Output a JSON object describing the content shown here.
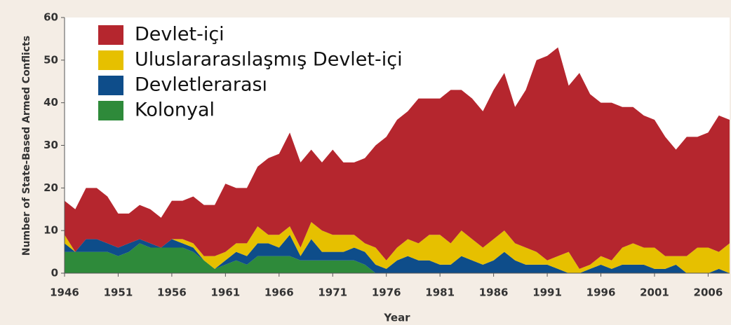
{
  "chart_data": {
    "type": "stacked_area",
    "x_label": "Year",
    "y_label": "Number of State-Based Armed Conflicts",
    "x": [
      1946,
      1947,
      1948,
      1949,
      1950,
      1951,
      1952,
      1953,
      1954,
      1955,
      1956,
      1957,
      1958,
      1959,
      1960,
      1961,
      1962,
      1963,
      1964,
      1965,
      1966,
      1967,
      1968,
      1969,
      1970,
      1971,
      1972,
      1973,
      1974,
      1975,
      1976,
      1977,
      1978,
      1979,
      1980,
      1981,
      1982,
      1983,
      1984,
      1985,
      1986,
      1987,
      1988,
      1989,
      1990,
      1991,
      1992,
      1993,
      1994,
      1995,
      1996,
      1997,
      1998,
      1999,
      2000,
      2001,
      2002,
      2003,
      2004,
      2005,
      2006,
      2007,
      2008
    ],
    "xlim": [
      1946,
      2008
    ],
    "xticks": [
      1946,
      1951,
      1956,
      1961,
      1966,
      1971,
      1976,
      1981,
      1986,
      1991,
      1996,
      2001,
      2006
    ],
    "ylim": [
      0,
      60
    ],
    "yticks": [
      0,
      10,
      20,
      30,
      40,
      50,
      60
    ],
    "legend": "upper left",
    "series": [
      {
        "name": "Kolonyal",
        "color": "#2e8a3a",
        "values": [
          5,
          5,
          5,
          5,
          5,
          4,
          5,
          7,
          6,
          6,
          6,
          6,
          5,
          3,
          1,
          2,
          3,
          2,
          4,
          4,
          4,
          4,
          3,
          3,
          3,
          3,
          3,
          3,
          2,
          0,
          0,
          0,
          0,
          0,
          0,
          0,
          0,
          0,
          0,
          0,
          0,
          0,
          0,
          0,
          0,
          0,
          0,
          0,
          0,
          0,
          0,
          0,
          0,
          0,
          0,
          0,
          0,
          0,
          0,
          0,
          0,
          0,
          0
        ]
      },
      {
        "name": "Devletlerarası",
        "color": "#0e4d8a",
        "values": [
          2,
          0,
          3,
          3,
          2,
          2,
          2,
          1,
          1,
          0,
          2,
          1,
          1,
          0,
          0,
          1,
          2,
          2,
          3,
          3,
          2,
          5,
          1,
          5,
          2,
          2,
          2,
          3,
          3,
          2,
          1,
          3,
          4,
          3,
          3,
          2,
          2,
          4,
          3,
          2,
          3,
          5,
          3,
          2,
          2,
          2,
          1,
          0,
          0,
          1,
          2,
          1,
          2,
          2,
          2,
          1,
          1,
          2,
          0,
          0,
          0,
          1,
          0
        ]
      },
      {
        "name": "Uluslararasılaşmış Devlet-içi",
        "color": "#e6c000",
        "values": [
          2,
          0,
          0,
          0,
          0,
          0,
          0,
          0,
          0,
          0,
          0,
          1,
          1,
          1,
          3,
          2,
          2,
          3,
          4,
          2,
          3,
          2,
          2,
          4,
          5,
          4,
          4,
          3,
          2,
          4,
          2,
          3,
          4,
          4,
          6,
          7,
          5,
          6,
          5,
          4,
          5,
          5,
          4,
          4,
          3,
          1,
          3,
          5,
          1,
          1,
          2,
          2,
          4,
          5,
          4,
          5,
          3,
          2,
          4,
          6,
          6,
          4,
          7
        ]
      },
      {
        "name": "Devlet-içi",
        "color": "#b5262e",
        "values": [
          8,
          10,
          12,
          12,
          11,
          8,
          7,
          8,
          8,
          7,
          9,
          9,
          11,
          12,
          12,
          16,
          13,
          13,
          14,
          18,
          19,
          22,
          20,
          17,
          16,
          20,
          17,
          17,
          20,
          24,
          29,
          30,
          30,
          34,
          32,
          32,
          36,
          33,
          33,
          32,
          35,
          37,
          32,
          37,
          45,
          48,
          49,
          39,
          46,
          40,
          36,
          37,
          33,
          32,
          31,
          30,
          28,
          25,
          28,
          26,
          27,
          32,
          29
        ]
      }
    ]
  }
}
